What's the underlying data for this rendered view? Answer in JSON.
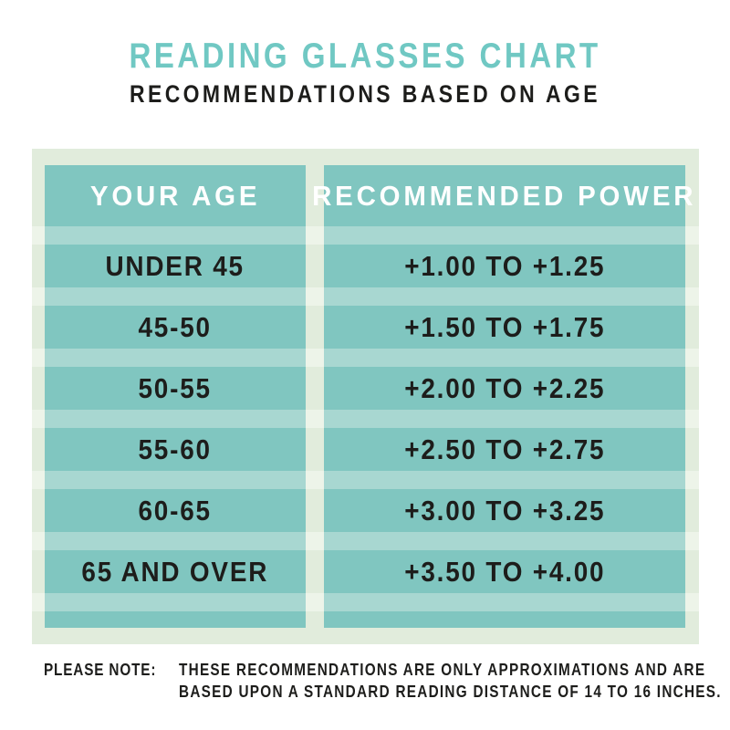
{
  "header": {
    "title": "READING GLASSES CHART",
    "subtitle": "RECOMMENDATIONS BASED ON AGE"
  },
  "table": {
    "columns": [
      "YOUR AGE",
      "RECOMMENDED POWER"
    ],
    "rows": [
      {
        "age": "UNDER 45",
        "power": "+1.00 TO +1.25"
      },
      {
        "age": "45-50",
        "power": "+1.50 TO +1.75"
      },
      {
        "age": "50-55",
        "power": "+2.00 TO +2.25"
      },
      {
        "age": "55-60",
        "power": "+2.50 TO +2.75"
      },
      {
        "age": "60-65",
        "power": "+3.00 TO +3.25"
      },
      {
        "age": "65 AND OVER",
        "power": "+3.50 TO +4.00"
      }
    ]
  },
  "footer": {
    "label": "PLEASE NOTE:",
    "line1": "THESE RECOMMENDATIONS ARE ONLY APPROXIMATIONS AND ARE",
    "line2": "BASED UPON A STANDARD READING DISTANCE OF 14 TO 16 INCHES."
  },
  "colors": {
    "title_teal": "#70c8c3",
    "teal_dark": "#80c6c0",
    "teal_light": "#a8d7d1",
    "pale_green": "#e1ecdc",
    "pale_stripe": "#edf4e9",
    "ink": "#1d1d1b"
  },
  "chart_data": {
    "type": "table",
    "title": "READING GLASSES CHART",
    "subtitle": "RECOMMENDATIONS BASED ON AGE",
    "columns": [
      "YOUR AGE",
      "RECOMMENDED POWER"
    ],
    "rows": [
      [
        "UNDER 45",
        "+1.00 TO +1.25"
      ],
      [
        "45-50",
        "+1.50 TO +1.75"
      ],
      [
        "50-55",
        "+2.00 TO +2.25"
      ],
      [
        "55-60",
        "+2.50 TO +2.75"
      ],
      [
        "60-65",
        "+3.00 TO +3.25"
      ],
      [
        "65 AND OVER",
        "+3.50 TO +4.00"
      ]
    ],
    "layout": "two striped teal columns on a pale green board, header row white text, data rows black text"
  }
}
